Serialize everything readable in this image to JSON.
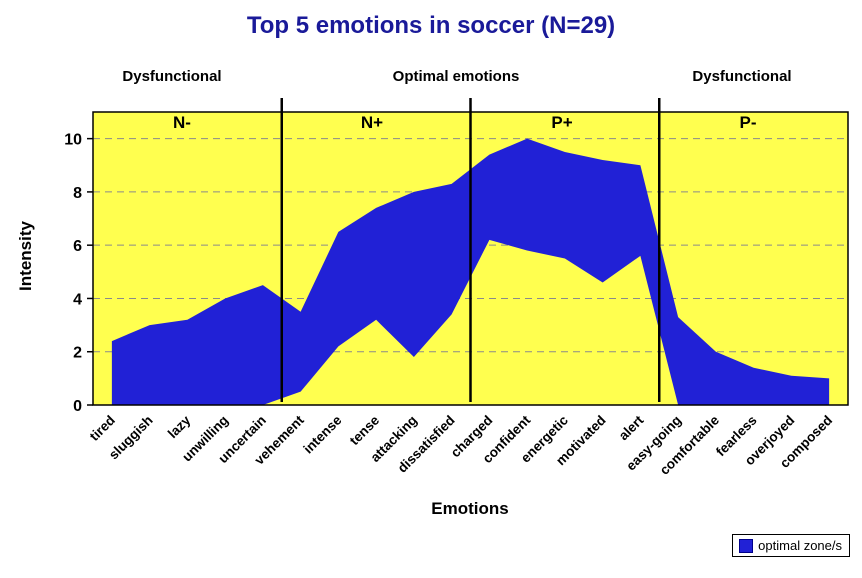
{
  "colors": {
    "plot_bg": "#ffff4f",
    "band": "#2121d6",
    "title": "#1a1a99",
    "grid": "#8a8a8a",
    "divider": "#000000"
  },
  "chart_data": {
    "type": "area",
    "title": "Top 5 emotions in soccer (N=29)",
    "xlabel": "Emotions",
    "ylabel": "Intensity",
    "ylim": [
      0,
      11
    ],
    "yticks": [
      0,
      2,
      4,
      6,
      8,
      10
    ],
    "grid": "dashed horizontal",
    "legend": "optimal zone/s",
    "legend_position": "bottom-right",
    "headers": [
      "Dysfunctional",
      "Optimal emotions",
      "Dysfunctional"
    ],
    "zone_labels": [
      "N-",
      "N+",
      "P+",
      "P-"
    ],
    "zone_boundaries": [
      5,
      10,
      15
    ],
    "categories": [
      "tired",
      "sluggish",
      "lazy",
      "unwilling",
      "uncertain",
      "vehement",
      "intense",
      "tense",
      "attacking",
      "dissatisfied",
      "charged",
      "confident",
      "energetic",
      "motivated",
      "alert",
      "easy-going",
      "comfortable",
      "fearless",
      "overjoyed",
      "composed"
    ],
    "series": [
      {
        "name": "upper bound of optimal zone",
        "values": [
          2.4,
          3.0,
          3.2,
          4.0,
          4.5,
          3.5,
          6.5,
          7.4,
          8.0,
          8.3,
          9.4,
          10.0,
          9.5,
          9.2,
          9.0,
          3.3,
          2.0,
          1.4,
          1.1,
          1.0
        ]
      },
      {
        "name": "lower bound of optimal zone",
        "values": [
          0,
          0,
          0,
          0,
          0,
          0.5,
          2.2,
          3.2,
          1.8,
          3.4,
          6.2,
          5.8,
          5.5,
          4.6,
          5.6,
          0,
          0,
          0,
          0,
          0
        ]
      }
    ]
  }
}
